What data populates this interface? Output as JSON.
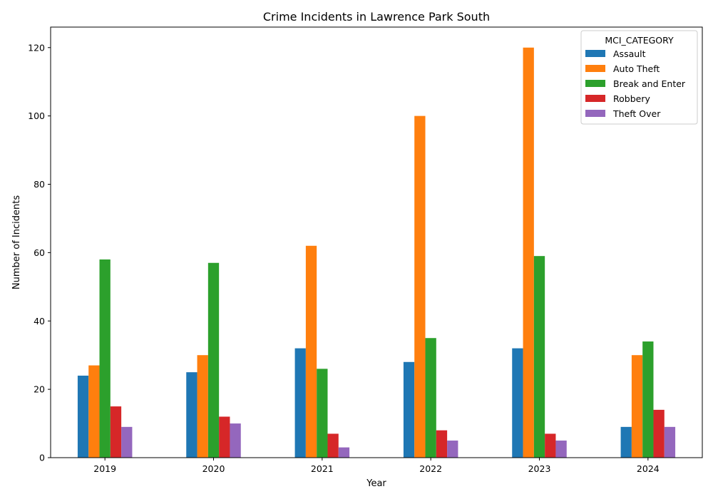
{
  "chart_data": {
    "type": "bar",
    "title": "Crime Incidents in Lawrence Park South",
    "xlabel": "Year",
    "ylabel": "Number of Incidents",
    "categories": [
      "2019",
      "2020",
      "2021",
      "2022",
      "2023",
      "2024"
    ],
    "ylim": [
      0,
      126
    ],
    "yticks": [
      0,
      20,
      40,
      60,
      80,
      100,
      120
    ],
    "grid": false,
    "legend": {
      "title": "MCI_CATEGORY",
      "placement": "top-right"
    },
    "series": [
      {
        "name": "Assault",
        "color": "#1f77b4",
        "values": [
          24,
          25,
          32,
          28,
          32,
          9
        ]
      },
      {
        "name": "Auto Theft",
        "color": "#ff7f0e",
        "values": [
          27,
          30,
          62,
          100,
          120,
          30
        ]
      },
      {
        "name": "Break and Enter",
        "color": "#2ca02c",
        "values": [
          58,
          57,
          26,
          35,
          59,
          34
        ]
      },
      {
        "name": "Robbery",
        "color": "#d62728",
        "values": [
          15,
          12,
          7,
          8,
          7,
          14
        ]
      },
      {
        "name": "Theft Over",
        "color": "#9467bd",
        "values": [
          9,
          10,
          3,
          5,
          5,
          9
        ]
      }
    ]
  }
}
